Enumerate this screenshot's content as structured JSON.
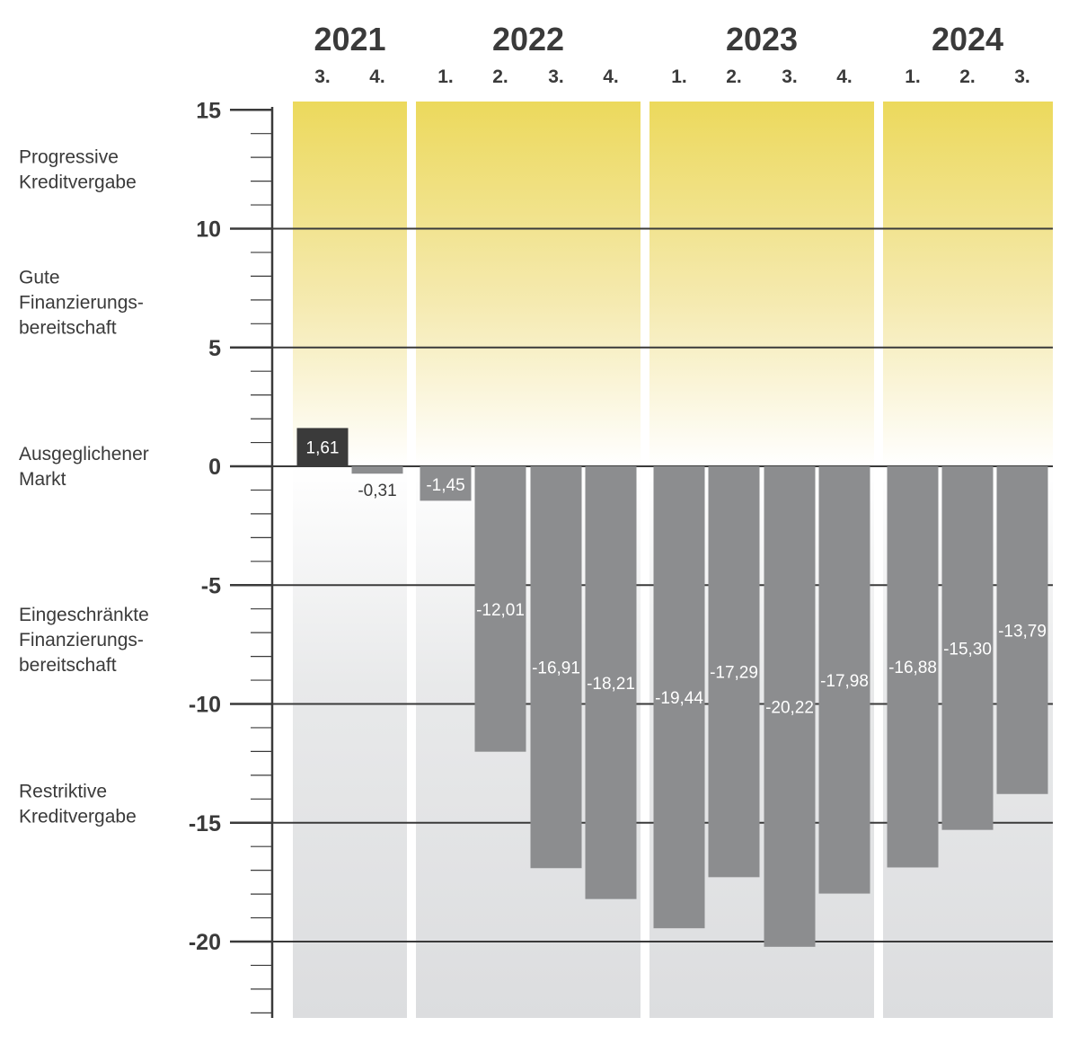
{
  "chart_data": {
    "type": "bar",
    "title": "",
    "xlabel": "",
    "ylabel": "",
    "ylim": [
      -23,
      15
    ],
    "y_ticks": [
      15,
      10,
      5,
      0,
      -5,
      -10,
      -15,
      -20
    ],
    "y_tick_labels": [
      "15",
      "10",
      "5",
      "0",
      "-5",
      "-10",
      "-15",
      "-20"
    ],
    "years": [
      {
        "label": "2021",
        "quarters": [
          "3.",
          "4."
        ]
      },
      {
        "label": "2022",
        "quarters": [
          "1.",
          "2.",
          "3.",
          "4."
        ]
      },
      {
        "label": "2023",
        "quarters": [
          "1.",
          "2.",
          "3.",
          "4."
        ]
      },
      {
        "label": "2024",
        "quarters": [
          "1.",
          "2.",
          "3."
        ]
      }
    ],
    "categories": [
      "2021 Q3",
      "2021 Q4",
      "2022 Q1",
      "2022 Q2",
      "2022 Q3",
      "2022 Q4",
      "2023 Q1",
      "2023 Q2",
      "2023 Q3",
      "2023 Q4",
      "2024 Q1",
      "2024 Q2",
      "2024 Q3"
    ],
    "values": [
      1.61,
      -0.31,
      -1.45,
      -12.01,
      -16.91,
      -18.21,
      -19.44,
      -17.29,
      -20.22,
      -17.98,
      -16.88,
      -15.3,
      -13.79
    ],
    "value_labels": [
      "1,61",
      "-0,31",
      "-1,45",
      "-12,01",
      "-16,91",
      "-18,21",
      "-19,44",
      "-17,29",
      "-20,22",
      "-17,98",
      "-16,88",
      "-15,30",
      "-13,79"
    ],
    "bands": [
      {
        "lines": [
          "Progressive",
          "Kreditvergabe"
        ],
        "center": 12.5
      },
      {
        "lines": [
          "Gute",
          "Finanzierungs-",
          "bereitschaft"
        ],
        "center": 6.9
      },
      {
        "lines": [
          "Ausgeglichener",
          "Markt"
        ],
        "center": 0.0
      },
      {
        "lines": [
          "Eingeschränkte",
          "Finanzierungs-",
          "bereitschaft"
        ],
        "center": -7.3
      },
      {
        "lines": [
          "Restriktive",
          "Kreditvergabe"
        ],
        "center": -14.2
      }
    ],
    "colors": {
      "positive_bar": "#3a3a3a",
      "negative_bar": "#8c8d8f",
      "upper_band": "#ecd95c",
      "lower_band": "#dcdddf",
      "text": "#3a3a3a"
    }
  }
}
